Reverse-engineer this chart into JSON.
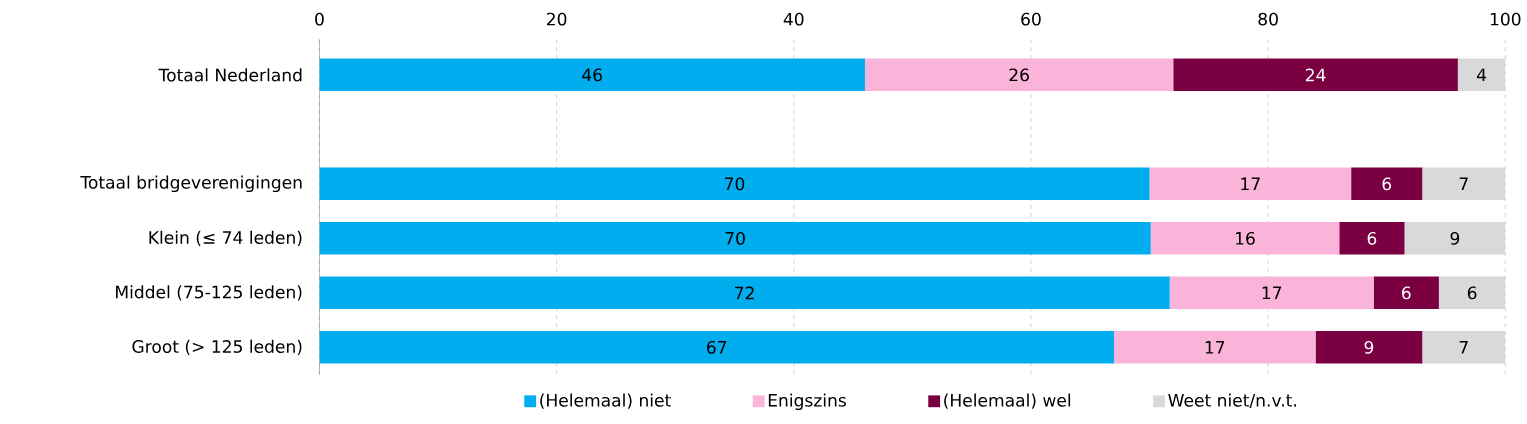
{
  "chart_data": {
    "type": "bar",
    "orientation": "horizontal",
    "stacked": true,
    "categories": [
      "Totaal Nederland",
      null,
      "Totaal bridgeverenigingen",
      "Klein (≤ 74 leden)",
      "Middel (75-125 leden)",
      "Groot (> 125 leden)"
    ],
    "series": [
      {
        "name": "(Helemaal) niet",
        "color": "#00aeef",
        "values": [
          46,
          null,
          70,
          70.1,
          71.7,
          67
        ],
        "value_labels": [
          "46",
          null,
          "70",
          "70",
          "72",
          "67"
        ]
      },
      {
        "name": "Enigszins",
        "color": "#fbb4d9",
        "values": [
          26,
          null,
          17,
          15.9,
          17.2,
          17
        ],
        "value_labels": [
          "26",
          null,
          "17",
          "16",
          "17",
          "17"
        ]
      },
      {
        "name": "(Helemaal) wel",
        "color": "#7b0041",
        "values": [
          24,
          null,
          6,
          5.5,
          5.5,
          9
        ],
        "value_labels": [
          "24",
          null,
          "6",
          "6",
          "6",
          "9"
        ]
      },
      {
        "name": "Weet niet/n.v.t.",
        "color": "#d9d9d9",
        "values": [
          4,
          null,
          7,
          8.5,
          5.6,
          7
        ],
        "value_labels": [
          "4",
          null,
          "7",
          "9",
          "6",
          "7"
        ]
      }
    ],
    "xlim": [
      0,
      100
    ],
    "xticks": [
      0,
      20,
      40,
      60,
      80,
      100
    ],
    "grid": "x",
    "legend": "bottom"
  }
}
